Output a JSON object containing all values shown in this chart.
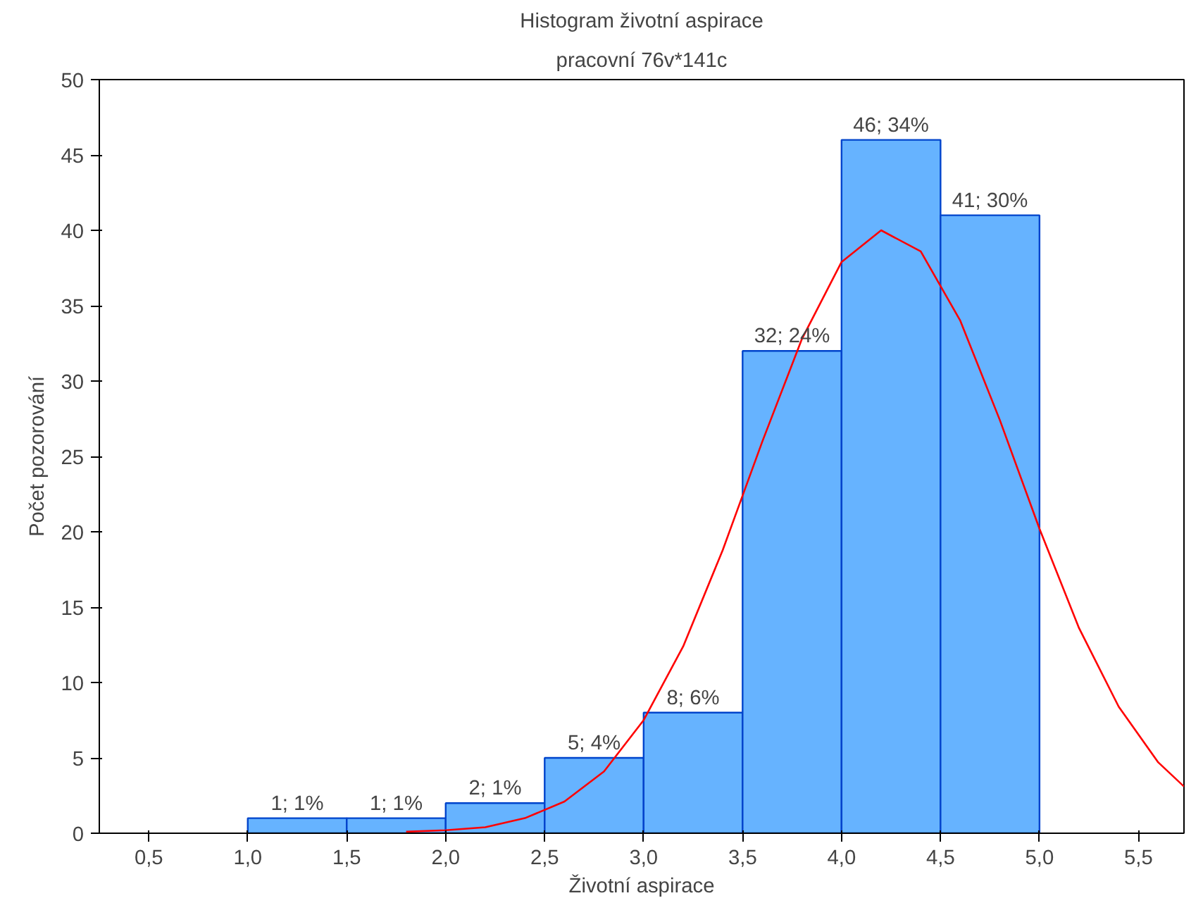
{
  "chart_data": {
    "type": "histogram",
    "title": "Histogram životní aspirace",
    "subtitle": "pracovní 76v*141c",
    "xlabel": "Životní aspirace",
    "ylabel": "Počet pozorování",
    "bins": [
      1.0,
      1.5,
      2.0,
      2.5,
      3.0,
      3.5,
      4.0,
      4.5,
      5.0
    ],
    "values": [
      1,
      1,
      2,
      5,
      8,
      32,
      46,
      41
    ],
    "value_labels": [
      "1; 1%",
      "1; 1%",
      "2; 1%",
      "5; 4%",
      "8; 6%",
      "32; 24%",
      "46; 34%",
      "41; 30%"
    ],
    "color": "#66b3ff",
    "series": [
      {
        "type": "line",
        "color": "#ff0000",
        "x": [
          1.8,
          2.0,
          2.2,
          2.4,
          2.6,
          2.8,
          3.0,
          3.2,
          3.4,
          3.6,
          3.8,
          4.0,
          4.2,
          4.4,
          4.6,
          4.8,
          5.0,
          5.2,
          5.4,
          5.6,
          5.73
        ],
        "values": [
          0.1,
          0.2,
          0.4,
          1.0,
          2.1,
          4.1,
          7.5,
          12.4,
          18.8,
          26.0,
          32.8,
          37.9,
          40.0,
          38.6,
          34.0,
          27.4,
          20.2,
          13.6,
          8.4,
          4.7,
          3.1
        ]
      }
    ],
    "xlim": [
      0.25,
      5.73
    ],
    "xticks": [
      {
        "value": 0.5,
        "label": "0,5"
      },
      {
        "value": 1.0,
        "label": "1,0"
      },
      {
        "value": 1.5,
        "label": "1,5"
      },
      {
        "value": 2.0,
        "label": "2,0"
      },
      {
        "value": 2.5,
        "label": "2,5"
      },
      {
        "value": 3.0,
        "label": "3,0"
      },
      {
        "value": 3.5,
        "label": "3,5"
      },
      {
        "value": 4.0,
        "label": "4,0"
      },
      {
        "value": 4.5,
        "label": "4,5"
      },
      {
        "value": 5.0,
        "label": "5,0"
      },
      {
        "value": 5.5,
        "label": "5,5"
      }
    ],
    "ylim": [
      0,
      50
    ],
    "yticks": [
      0,
      5,
      10,
      15,
      20,
      25,
      30,
      35,
      40,
      45,
      50
    ],
    "grid": false
  }
}
